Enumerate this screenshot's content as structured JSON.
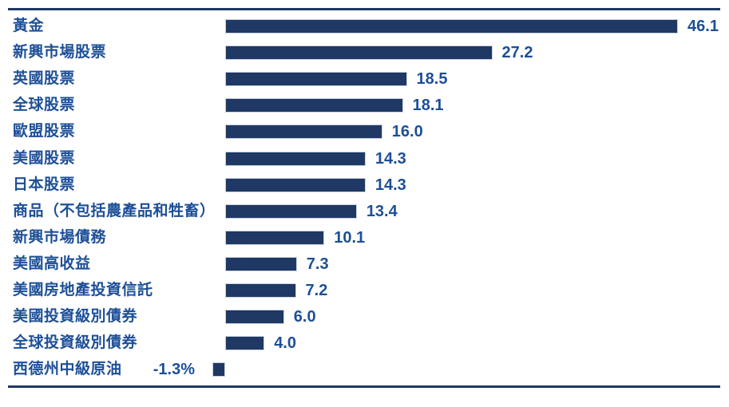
{
  "chart_data": {
    "type": "bar",
    "orientation": "horizontal",
    "title": "",
    "xlabel": "",
    "ylabel": "",
    "grid": false,
    "legend": false,
    "xlim": [
      -5,
      50
    ],
    "categories": [
      "黃金",
      "新興市場股票",
      "英國股票",
      "全球股票",
      "歐盟股票",
      "美國股票",
      "日本股票",
      "商品（不包括農產品和牲畜）",
      "新興市場債務",
      "美國高收益",
      "美國房地產投資信託",
      "美國投資級別債券",
      "全球投資級別債券",
      "西德州中級原油"
    ],
    "values": [
      46.1,
      27.2,
      18.5,
      18.1,
      16.0,
      14.3,
      14.3,
      13.4,
      10.1,
      7.3,
      7.2,
      6.0,
      4.0,
      -1.3
    ],
    "value_labels": [
      "46.1",
      "27.2",
      "18.5",
      "18.1",
      "16.0",
      "14.3",
      "14.3",
      "13.4",
      "10.1",
      "7.3",
      "7.2",
      "6.0",
      "4.0",
      "-1.3%"
    ],
    "bar_color": "#1f3864",
    "text_color": "#1d4f97",
    "rule_color": "#1f3864",
    "background_color": "#ffffff"
  }
}
